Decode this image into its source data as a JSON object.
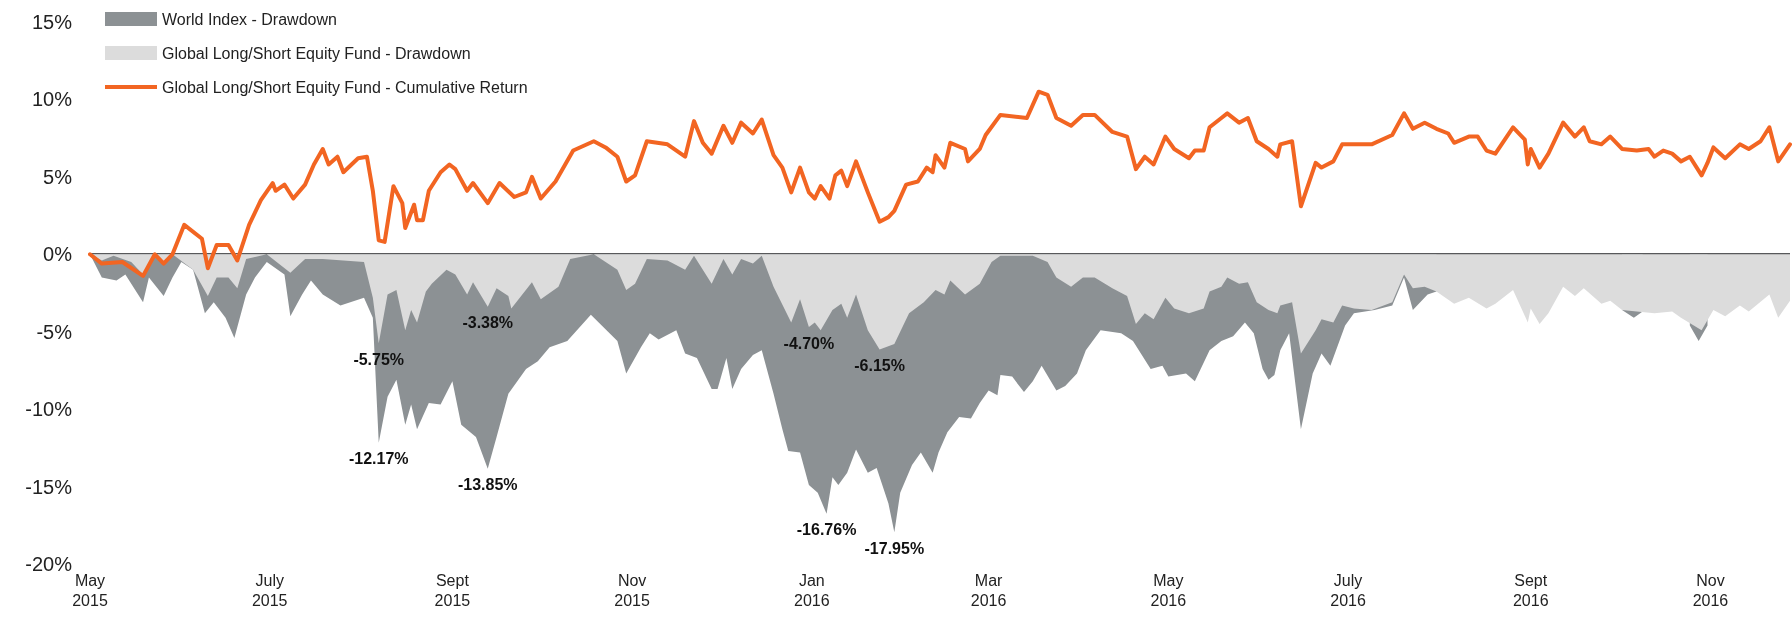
{
  "chart_data": {
    "type": "line",
    "legend": "top left",
    "marker": "none",
    "line_style": "solid",
    "xlim": [
      "2015-05-01",
      "2016-11-28"
    ],
    "xticks": [
      {
        "value": "2015-05-01",
        "label": "May\n2015"
      },
      {
        "value": "2015-07-01",
        "label": "July\n2015"
      },
      {
        "value": "2015-09-01",
        "label": "Sept\n2015"
      },
      {
        "value": "2015-11-01",
        "label": "Nov\n2015"
      },
      {
        "value": "2016-01-01",
        "label": "Jan\n2016"
      },
      {
        "value": "2016-03-01",
        "label": "Mar\n2016"
      },
      {
        "value": "2016-05-01",
        "label": "May\n2016"
      },
      {
        "value": "2016-07-01",
        "label": "July\n2016"
      },
      {
        "value": "2016-09-01",
        "label": "Sept\n2016"
      },
      {
        "value": "2016-11-01",
        "label": "Nov\n2016"
      }
    ],
    "ylim": [
      -20,
      15
    ],
    "yticks": [
      {
        "value": -20,
        "label": "-20%"
      },
      {
        "value": -15,
        "label": "-15%"
      },
      {
        "value": -10,
        "label": "-10%"
      },
      {
        "value": -5,
        "label": "-5%"
      },
      {
        "value": 0,
        "label": "0%"
      },
      {
        "value": 5,
        "label": "5%"
      },
      {
        "value": 10,
        "label": "10%"
      },
      {
        "value": 15,
        "label": "15%"
      }
    ],
    "ref_lines": [
      {
        "axis": "y",
        "value": 0,
        "color": "#58595b"
      }
    ],
    "annotations": [
      {
        "text": "-12.17%",
        "x": "2015-08-07",
        "y": -12.17
      },
      {
        "text": "-5.75%",
        "x": "2015-08-07",
        "y": -5.75
      },
      {
        "text": "-13.85%",
        "x": "2015-09-13",
        "y": -13.85
      },
      {
        "text": "-3.38%",
        "x": "2015-09-13",
        "y": -3.38
      },
      {
        "text": "-16.76%",
        "x": "2016-01-06",
        "y": -16.76
      },
      {
        "text": "-4.70%",
        "x": "2015-12-31",
        "y": -4.7
      },
      {
        "text": "-17.95%",
        "x": "2016-01-29",
        "y": -17.95
      },
      {
        "text": "-6.15%",
        "x": "2016-01-24",
        "y": -6.15
      }
    ],
    "series": [
      {
        "name": "World Index - Drawdown",
        "type": "area",
        "color": "#8c9194",
        "x": [
          "2015-05-01",
          "2015-05-05",
          "2015-05-10",
          "2015-05-13",
          "2015-05-19",
          "2015-05-21",
          "2015-05-26",
          "2015-05-29",
          "2015-06-01",
          "2015-06-05",
          "2015-06-09",
          "2015-06-12",
          "2015-06-16",
          "2015-06-19",
          "2015-06-23",
          "2015-06-26",
          "2015-06-30",
          "2015-07-06",
          "2015-07-08",
          "2015-07-12",
          "2015-07-15",
          "2015-07-19",
          "2015-07-25",
          "2015-08-02",
          "2015-08-05",
          "2015-08-07",
          "2015-08-10",
          "2015-08-13",
          "2015-08-16",
          "2015-08-18",
          "2015-08-20",
          "2015-08-24",
          "2015-08-28",
          "2015-09-01",
          "2015-09-04",
          "2015-09-09",
          "2015-09-13",
          "2015-09-16",
          "2015-09-20",
          "2015-09-26",
          "2015-09-30",
          "2015-10-04",
          "2015-10-10",
          "2015-10-18",
          "2015-10-27",
          "2015-10-30",
          "2015-11-04",
          "2015-11-07",
          "2015-11-10",
          "2015-11-16",
          "2015-11-19",
          "2015-11-23",
          "2015-11-28",
          "2015-11-30",
          "2015-12-03",
          "2015-12-05",
          "2015-12-08",
          "2015-12-12",
          "2015-12-15",
          "2015-12-19",
          "2015-12-22",
          "2015-12-24",
          "2015-12-28",
          "2015-12-31",
          "2016-01-03",
          "2016-01-06",
          "2016-01-08",
          "2016-01-10",
          "2016-01-13",
          "2016-01-16",
          "2016-01-20",
          "2016-01-23",
          "2016-01-27",
          "2016-01-29",
          "2016-01-31",
          "2016-02-04",
          "2016-02-07",
          "2016-02-11",
          "2016-02-13",
          "2016-02-16",
          "2016-02-20",
          "2016-02-24",
          "2016-02-27",
          "2016-03-01",
          "2016-03-04",
          "2016-03-05",
          "2016-03-09",
          "2016-03-13",
          "2016-03-16",
          "2016-03-19",
          "2016-03-24",
          "2016-03-27",
          "2016-03-31",
          "2016-04-03",
          "2016-04-08",
          "2016-04-15",
          "2016-04-19",
          "2016-04-25",
          "2016-04-29",
          "2016-05-01",
          "2016-05-07",
          "2016-05-10",
          "2016-05-15",
          "2016-05-19",
          "2016-05-23",
          "2016-05-27",
          "2016-05-30",
          "2016-06-02",
          "2016-06-04",
          "2016-06-06",
          "2016-06-08",
          "2016-06-11",
          "2016-06-15",
          "2016-06-19",
          "2016-06-22",
          "2016-06-25",
          "2016-06-30",
          "2016-07-03",
          "2016-07-10",
          "2016-07-16",
          "2016-07-20",
          "2016-07-23",
          "2016-07-28",
          "2016-07-31",
          "2016-08-06",
          "2016-10-02",
          "2016-10-06",
          "2016-10-09",
          "2016-10-20",
          "2016-10-25",
          "2016-10-28",
          "2016-10-31"
        ],
        "values": [
          0,
          -1.5,
          -1.7,
          -1.3,
          -3.1,
          -1.5,
          -2.7,
          -1.5,
          -0.5,
          -1.0,
          -3.8,
          -3.1,
          -4.1,
          -5.4,
          -2.6,
          -1.5,
          -0.5,
          -1.3,
          -4.0,
          -2.6,
          -1.7,
          -2.6,
          -3.3,
          -2.8,
          -4.1,
          -12.17,
          -9.2,
          -8.1,
          -11.0,
          -9.7,
          -11.3,
          -9.6,
          -9.7,
          -8.2,
          -11.0,
          -11.8,
          -13.85,
          -11.8,
          -9.0,
          -7.4,
          -6.9,
          -6.0,
          -5.6,
          -3.9,
          -5.6,
          -7.7,
          -6.0,
          -5.1,
          -5.5,
          -4.9,
          -6.4,
          -6.7,
          -8.7,
          -8.7,
          -6.7,
          -8.7,
          -7.4,
          -6.5,
          -6.2,
          -9.0,
          -11.3,
          -12.7,
          -12.8,
          -14.9,
          -15.4,
          -16.76,
          -14.4,
          -14.9,
          -14.1,
          -12.6,
          -14.1,
          -13.8,
          -16.1,
          -17.95,
          -15.4,
          -13.6,
          -12.8,
          -14.1,
          -12.8,
          -11.5,
          -10.5,
          -10.6,
          -9.6,
          -8.8,
          -9.1,
          -7.8,
          -7.9,
          -8.9,
          -8.2,
          -7.2,
          -8.8,
          -8.5,
          -7.7,
          -6.2,
          -4.9,
          -5.1,
          -5.6,
          -7.4,
          -7.2,
          -7.9,
          -7.7,
          -8.2,
          -6.2,
          -5.6,
          -5.3,
          -4.4,
          -5.1,
          -7.4,
          -8.1,
          -7.8,
          -6.2,
          -5.1,
          -11.3,
          -7.7,
          -6.4,
          -7.2,
          -4.6,
          -3.8,
          -3.6,
          -3.3,
          -1.5,
          -3.6,
          -2.6,
          -2.4,
          null,
          -3.6,
          -4.1,
          -3.7,
          null,
          -4.6,
          -5.6,
          -4.6
        ]
      },
      {
        "name": "Global Long/Short Equity Fund - Drawdown",
        "type": "area",
        "color": "#dcdcdc",
        "x": [
          "2015-05-01",
          "2015-05-05",
          "2015-05-09",
          "2015-05-15",
          "2015-05-19",
          "2015-05-23",
          "2015-05-26",
          "2015-05-29",
          "2015-06-05",
          "2015-06-10",
          "2015-06-13",
          "2015-06-17",
          "2015-06-20",
          "2015-06-23",
          "2015-06-30",
          "2015-07-08",
          "2015-07-13",
          "2015-07-19",
          "2015-08-02",
          "2015-08-05",
          "2015-08-07",
          "2015-08-10",
          "2015-08-13",
          "2015-08-16",
          "2015-08-18",
          "2015-08-20",
          "2015-08-23",
          "2015-08-25",
          "2015-08-30",
          "2015-09-02",
          "2015-09-06",
          "2015-09-08",
          "2015-09-13",
          "2015-09-16",
          "2015-09-20",
          "2015-09-21",
          "2015-09-28",
          "2015-10-01",
          "2015-10-07",
          "2015-10-11",
          "2015-10-19",
          "2015-10-23",
          "2015-10-27",
          "2015-10-30",
          "2015-11-02",
          "2015-11-06",
          "2015-11-13",
          "2015-11-19",
          "2015-11-22",
          "2015-11-28",
          "2015-12-02",
          "2015-12-05",
          "2015-12-08",
          "2015-12-12",
          "2015-12-15",
          "2015-12-19",
          "2015-12-25",
          "2015-12-28",
          "2015-12-31",
          "2016-01-02",
          "2016-01-04",
          "2016-01-08",
          "2016-01-11",
          "2016-01-13",
          "2016-01-16",
          "2016-01-20",
          "2016-01-24",
          "2016-01-29",
          "2016-02-03",
          "2016-02-08",
          "2016-02-12",
          "2016-02-15",
          "2016-02-17",
          "2016-02-22",
          "2016-02-27",
          "2016-03-02",
          "2016-03-05",
          "2016-03-16",
          "2016-03-21",
          "2016-03-24",
          "2016-03-29",
          "2016-04-02",
          "2016-04-06",
          "2016-04-12",
          "2016-04-17",
          "2016-04-20",
          "2016-04-23",
          "2016-04-26",
          "2016-04-30",
          "2016-05-03",
          "2016-05-08",
          "2016-05-13",
          "2016-05-15",
          "2016-05-19",
          "2016-05-21",
          "2016-05-25",
          "2016-05-28",
          "2016-05-31",
          "2016-06-04",
          "2016-06-07",
          "2016-06-08",
          "2016-06-12",
          "2016-06-15",
          "2016-06-20",
          "2016-06-22",
          "2016-06-26",
          "2016-06-29",
          "2016-07-03",
          "2016-07-09",
          "2016-07-16",
          "2016-07-20",
          "2016-07-23",
          "2016-07-27",
          "2016-07-31",
          "2016-08-06",
          "2016-08-11",
          "2016-08-17",
          "2016-08-20",
          "2016-08-26",
          "2016-08-31",
          "2016-09-01",
          "2016-09-04",
          "2016-09-07",
          "2016-09-12",
          "2016-09-16",
          "2016-09-19",
          "2016-09-25",
          "2016-09-28",
          "2016-10-02",
          "2016-10-07",
          "2016-10-13",
          "2016-10-19",
          "2016-10-22",
          "2016-10-29",
          "2016-11-02",
          "2016-11-06",
          "2016-11-11",
          "2016-11-14",
          "2016-11-21",
          "2016-11-24",
          "2016-11-28"
        ],
        "values": [
          0,
          -0.4,
          -0.1,
          -0.5,
          -1.3,
          0,
          -0.6,
          0,
          -1.0,
          -2.7,
          -1.5,
          -1.5,
          -2.2,
          -0.3,
          0,
          -1.2,
          -0.3,
          -0.3,
          -0.5,
          -2.8,
          -5.75,
          -2.6,
          -2.3,
          -4.9,
          -3.6,
          -4.4,
          -2.4,
          -1.9,
          -1.0,
          -1.3,
          -2.6,
          -1.8,
          -3.38,
          -2.2,
          -2.7,
          -3.5,
          -1.8,
          -2.9,
          -2.1,
          -0.3,
          0,
          -0.5,
          -1.0,
          -2.3,
          -1.9,
          -0.3,
          -0.4,
          -1.0,
          -0.1,
          -1.9,
          -0.3,
          -1.3,
          -0.3,
          -0.6,
          -0.1,
          -2.1,
          -4.4,
          -2.9,
          -4.7,
          -4.4,
          -4.9,
          -3.6,
          -3.2,
          -4.1,
          -2.6,
          -4.9,
          -6.15,
          -5.8,
          -3.8,
          -3.1,
          -2.3,
          -2.6,
          -1.7,
          -2.6,
          -1.9,
          -0.5,
          -0.1,
          -0.1,
          -0.5,
          -1.5,
          -2.1,
          -1.5,
          -1.5,
          -2.2,
          -2.7,
          -4.5,
          -3.8,
          -4.2,
          -2.8,
          -3.5,
          -3.8,
          -3.5,
          -2.4,
          -2.1,
          -1.5,
          -1.9,
          -1.8,
          -3.1,
          -3.6,
          -3.8,
          -3.3,
          -3.1,
          -6.4,
          -4.9,
          -4.2,
          -4.4,
          -3.3,
          -3.5,
          -3.6,
          -3.1,
          -1.3,
          -2.2,
          -2.1,
          -2.4,
          -3.2,
          -2.8,
          -3.5,
          -3.2,
          -2.3,
          -4.4,
          -3.5,
          -4.5,
          -3.8,
          -2.1,
          -2.7,
          -2.2,
          -3.2,
          -3.0,
          -3.6,
          -3.7,
          -3.8,
          -3.7,
          -4.1,
          -4.9,
          -3.6,
          -4.0,
          -3.3,
          -3.7,
          -2.6,
          -4.1,
          -3.0
        ]
      },
      {
        "name": "Global Long/Short Equity Fund - Cumulative Return",
        "type": "line",
        "color": "#f26522",
        "x": [
          "2015-05-01",
          "2015-05-05",
          "2015-05-12",
          "2015-05-19",
          "2015-05-23",
          "2015-05-26",
          "2015-05-29",
          "2015-06-02",
          "2015-06-08",
          "2015-06-10",
          "2015-06-13",
          "2015-06-17",
          "2015-06-20",
          "2015-06-24",
          "2015-06-28",
          "2015-07-02",
          "2015-07-03",
          "2015-07-06",
          "2015-07-09",
          "2015-07-13",
          "2015-07-16",
          "2015-07-19",
          "2015-07-21",
          "2015-07-24",
          "2015-07-26",
          "2015-07-31",
          "2015-08-03",
          "2015-08-05",
          "2015-08-07",
          "2015-08-09",
          "2015-08-12",
          "2015-08-15",
          "2015-08-16",
          "2015-08-19",
          "2015-08-20",
          "2015-08-22",
          "2015-08-24",
          "2015-08-28",
          "2015-08-31",
          "2015-09-02",
          "2015-09-06",
          "2015-09-08",
          "2015-09-13",
          "2015-09-17",
          "2015-09-22",
          "2015-09-26",
          "2015-09-28",
          "2015-10-01",
          "2015-10-06",
          "2015-10-12",
          "2015-10-19",
          "2015-10-23",
          "2015-10-27",
          "2015-10-30",
          "2015-11-02",
          "2015-11-06",
          "2015-11-13",
          "2015-11-19",
          "2015-11-22",
          "2015-11-25",
          "2015-11-28",
          "2015-12-02",
          "2015-12-05",
          "2015-12-08",
          "2015-12-12",
          "2015-12-15",
          "2015-12-19",
          "2015-12-22",
          "2015-12-25",
          "2015-12-28",
          "2015-12-31",
          "2016-01-02",
          "2016-01-04",
          "2016-01-07",
          "2016-01-09",
          "2016-01-11",
          "2016-01-13",
          "2016-01-16",
          "2016-01-20",
          "2016-01-24",
          "2016-01-27",
          "2016-01-29",
          "2016-02-02",
          "2016-02-06",
          "2016-02-09",
          "2016-02-11",
          "2016-02-12",
          "2016-02-15",
          "2016-02-17",
          "2016-02-22",
          "2016-02-23",
          "2016-02-27",
          "2016-02-29",
          "2016-03-05",
          "2016-03-14",
          "2016-03-18",
          "2016-03-21",
          "2016-03-24",
          "2016-03-29",
          "2016-04-02",
          "2016-04-06",
          "2016-04-12",
          "2016-04-17",
          "2016-04-20",
          "2016-04-23",
          "2016-04-26",
          "2016-04-30",
          "2016-05-03",
          "2016-05-08",
          "2016-05-10",
          "2016-05-13",
          "2016-05-15",
          "2016-05-19",
          "2016-05-21",
          "2016-05-25",
          "2016-05-28",
          "2016-05-31",
          "2016-06-04",
          "2016-06-07",
          "2016-06-08",
          "2016-06-12",
          "2016-06-15",
          "2016-06-20",
          "2016-06-22",
          "2016-06-26",
          "2016-06-29",
          "2016-07-09",
          "2016-07-16",
          "2016-07-20",
          "2016-07-23",
          "2016-07-27",
          "2016-07-31",
          "2016-08-04",
          "2016-08-06",
          "2016-08-11",
          "2016-08-14",
          "2016-08-17",
          "2016-08-20",
          "2016-08-26",
          "2016-08-30",
          "2016-08-31",
          "2016-09-01",
          "2016-09-04",
          "2016-09-07",
          "2016-09-12",
          "2016-09-16",
          "2016-09-19",
          "2016-09-21",
          "2016-09-25",
          "2016-09-28",
          "2016-10-02",
          "2016-10-07",
          "2016-10-11",
          "2016-10-13",
          "2016-10-16",
          "2016-10-19",
          "2016-10-22",
          "2016-10-25",
          "2016-10-29",
          "2016-10-31",
          "2016-11-02",
          "2016-11-06",
          "2016-11-11",
          "2016-11-14",
          "2016-11-18",
          "2016-11-21",
          "2016-11-24",
          "2016-11-28"
        ],
        "values": [
          0,
          -0.6,
          -0.5,
          -1.4,
          0,
          -0.6,
          0,
          1.9,
          1.0,
          -0.9,
          0.6,
          0.6,
          -0.4,
          1.9,
          3.5,
          4.6,
          4.1,
          4.5,
          3.6,
          4.5,
          5.8,
          6.8,
          5.8,
          6.3,
          5.3,
          6.2,
          6.3,
          4.1,
          0.9,
          0.8,
          4.4,
          3.3,
          1.7,
          3.2,
          2.2,
          2.2,
          4.1,
          5.3,
          5.8,
          5.5,
          4.1,
          4.6,
          3.3,
          4.6,
          3.7,
          4.0,
          5.0,
          3.6,
          4.7,
          6.7,
          7.3,
          6.9,
          6.3,
          4.7,
          5.1,
          7.3,
          7.1,
          6.3,
          8.6,
          7.2,
          6.5,
          8.3,
          7.2,
          8.5,
          7.8,
          8.7,
          6.4,
          5.6,
          4.0,
          5.6,
          4.0,
          3.6,
          4.4,
          3.6,
          5.1,
          5.4,
          4.4,
          6.0,
          4.0,
          2.1,
          2.4,
          2.8,
          4.5,
          4.7,
          5.6,
          5.3,
          6.4,
          5.6,
          7.2,
          6.8,
          6.0,
          6.8,
          7.7,
          9.0,
          8.8,
          10.5,
          10.3,
          8.8,
          8.3,
          9.0,
          9.0,
          7.9,
          7.6,
          5.5,
          6.3,
          5.8,
          7.6,
          6.8,
          6.2,
          6.7,
          6.7,
          8.2,
          8.8,
          9.1,
          8.5,
          8.8,
          7.3,
          6.8,
          6.3,
          7.1,
          7.3,
          3.1,
          5.9,
          5.6,
          6.0,
          7.1,
          7.1,
          7.7,
          9.1,
          8.1,
          8.5,
          8.1,
          7.8,
          7.2,
          7.6,
          7.6,
          6.7,
          6.5,
          8.2,
          7.4,
          5.8,
          6.8,
          5.6,
          6.5,
          8.5,
          7.6,
          8.2,
          7.3,
          7.1,
          7.6,
          6.8,
          6.7,
          6.8,
          6.3,
          6.7,
          6.5,
          6.0,
          6.3,
          5.1,
          5.9,
          6.9,
          6.2,
          7.1,
          6.8,
          7.3,
          8.2,
          6.0,
          7.1
        ]
      }
    ]
  }
}
